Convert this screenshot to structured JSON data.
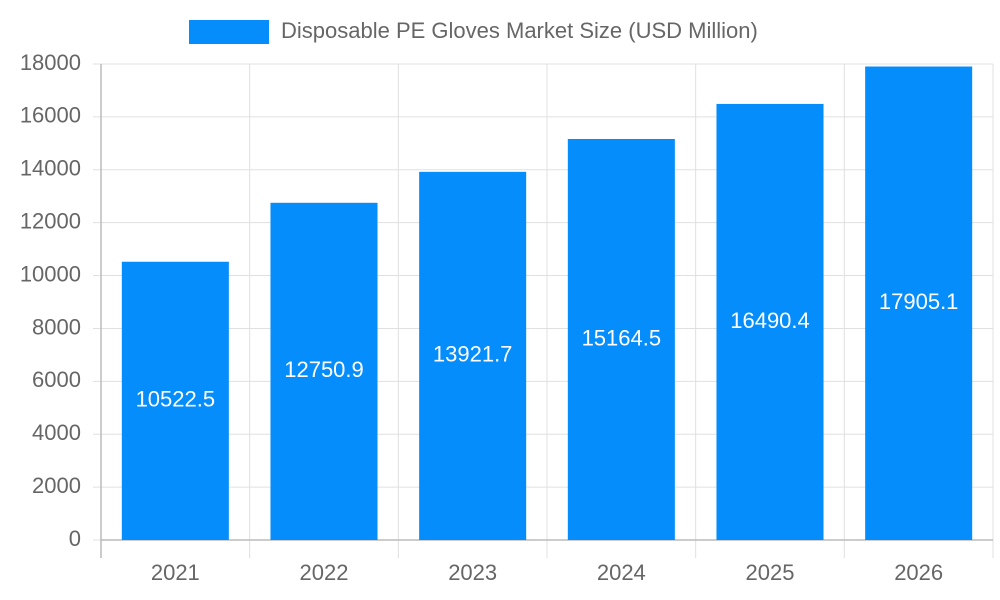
{
  "chart_data": {
    "type": "bar",
    "categories": [
      "2021",
      "2022",
      "2023",
      "2024",
      "2025",
      "2026"
    ],
    "series": [
      {
        "name": "Disposable PE Gloves Market Size (USD Million)",
        "color": "#058DFB",
        "values": [
          10522.5,
          12750.9,
          13921.7,
          15164.5,
          16490.4,
          17905.1
        ]
      }
    ],
    "ylim": [
      0,
      18000
    ],
    "yticks": [
      0,
      2000,
      4000,
      6000,
      8000,
      10000,
      12000,
      14000,
      16000,
      18000
    ],
    "grid": true,
    "legend": "top"
  }
}
